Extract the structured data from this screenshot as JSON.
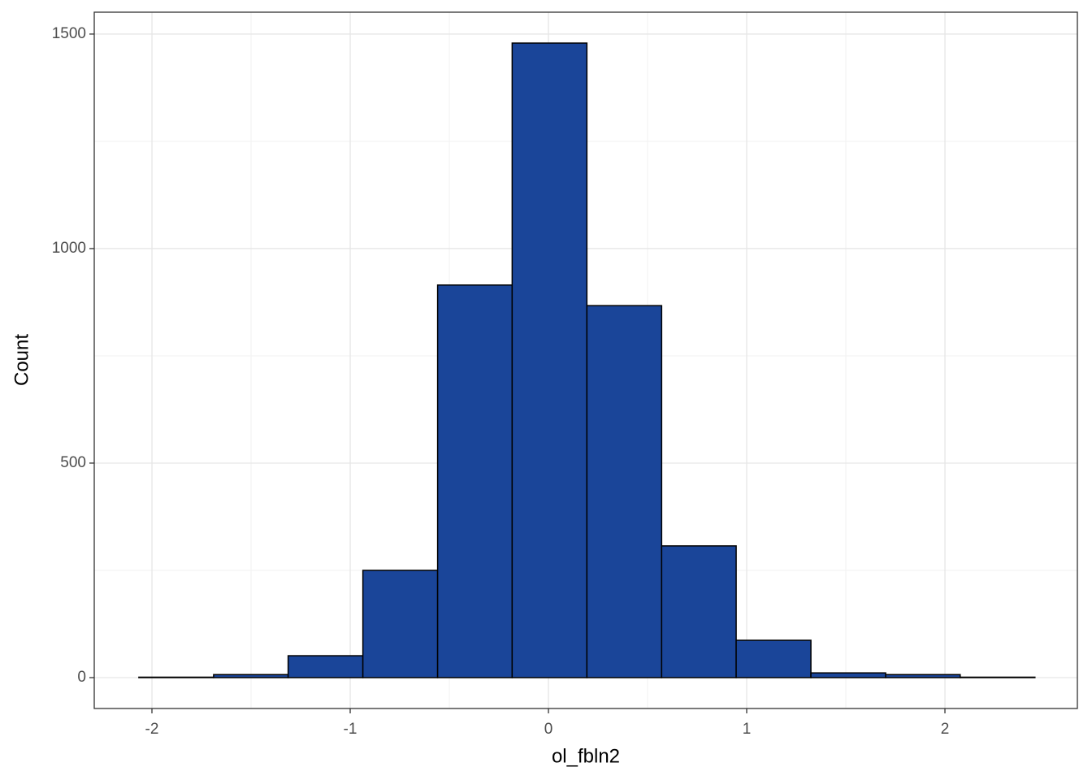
{
  "chart_data": {
    "type": "histogram",
    "x_label": "ol_fbln2",
    "y_label": "Count",
    "bins": [
      -2.066,
      -1.689,
      -1.313,
      -0.936,
      -0.559,
      -0.183,
      0.194,
      0.571,
      0.947,
      1.324,
      1.701,
      2.077,
      2.454
    ],
    "values": [
      1,
      7,
      51,
      250,
      915,
      1479,
      867,
      307,
      87,
      11,
      7,
      1
    ],
    "color": "#1a4599",
    "xlim": [
      -2.291,
      2.668
    ],
    "ylim": [
      -72,
      1551
    ],
    "xticks": [
      -2,
      -1,
      0,
      1,
      2
    ],
    "yticks": [
      0,
      500,
      1000,
      1500
    ],
    "xminor": [
      -1.5,
      -0.5,
      0.5,
      1.5
    ],
    "yminor": [
      250,
      750,
      1250
    ],
    "grid": true
  }
}
